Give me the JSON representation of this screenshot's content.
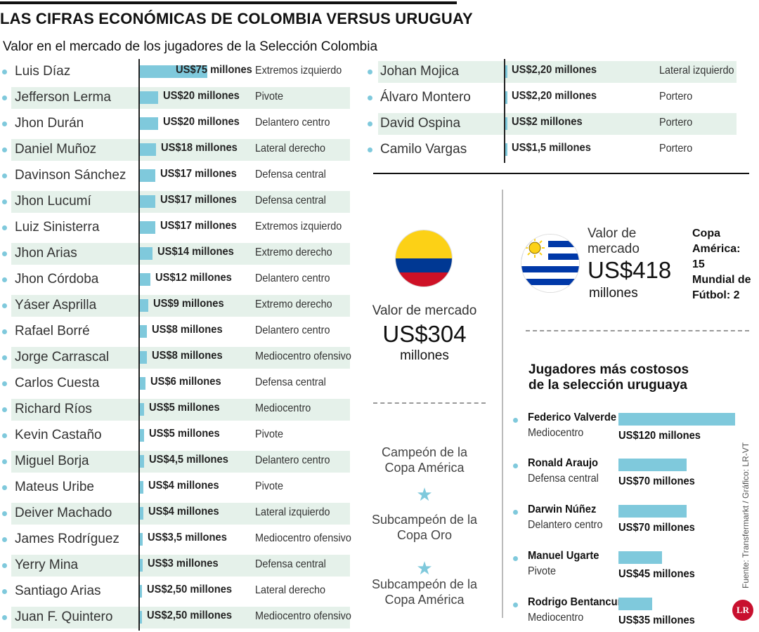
{
  "header": {
    "title": "LAS CIFRAS ECONÓMICAS DE COLOMBIA VERSUS URUGUAY",
    "subtitle": "Valor en el mercado de los jugadores de la Selección Colombia"
  },
  "colombia": {
    "market_value_label": "Valor de mercado",
    "market_value": "US$304",
    "market_value_unit": "millones",
    "achievements": [
      "Campeón de la Copa América",
      "Subcampeón de la Copa Oro",
      "Subcampeón de la Copa América"
    ],
    "flag": "colombia-flag",
    "colors": {
      "yellow": "#fcd116",
      "blue": "#003893",
      "red": "#ce1126"
    }
  },
  "uruguay": {
    "market_value_label": "Valor de mercado",
    "market_value": "US$418",
    "market_value_unit": "millones",
    "copa_america": "Copa América: 15",
    "mundial": "Mundial de Fútbol: 2",
    "players_heading": "Jugadores más costosos de la selección uruguaya",
    "flag": "uruguay-flag"
  },
  "source": "Fuente: Transfermarkt / Gráfico: LR-VT",
  "logo_text": "LR",
  "accent_color": "#7fc9dc",
  "chart_data": [
    {
      "type": "bar",
      "orientation": "horizontal",
      "unit": "US$ millones",
      "categories": [
        "Luis Díaz",
        "Jefferson Lerma",
        "Jhon Durán",
        "Daniel Muñoz",
        "Davinson Sánchez",
        "Jhon Lucumí",
        "Luiz Sinisterra",
        "Jhon Arias",
        "Jhon Córdoba",
        "Yáser Asprilla",
        "Rafael Borré",
        "Jorge Carrascal",
        "Carlos Cuesta",
        "Richard Ríos",
        "Kevin Castaño",
        "Miguel Borja",
        "Mateus Uribe",
        "Deiver Machado",
        "James Rodríguez",
        "Yerry Mina",
        "Santiago Arias",
        "Juan F. Quintero",
        "Johan Mojica",
        "Álvaro Montero",
        "David Ospina",
        "Camilo Vargas"
      ],
      "values": [
        75,
        20,
        20,
        18,
        17,
        17,
        17,
        14,
        12,
        9,
        8,
        8,
        6,
        5,
        5,
        4.5,
        4,
        4,
        3.5,
        3,
        2.5,
        2.5,
        2.2,
        2.2,
        2,
        1.5
      ],
      "value_labels": [
        "US$75 millones",
        "US$20 millones",
        "US$20 millones",
        "US$18 millones",
        "US$17 millones",
        "US$17 millones",
        "US$17 millones",
        "US$14 millones",
        "US$12 millones",
        "US$9 millones",
        "US$8 millones",
        "US$8 millones",
        "US$6 millones",
        "US$5 millones",
        "US$5 millones",
        "US$4,5 millones",
        "US$4 millones",
        "US$4 millones",
        "US$3,5 millones",
        "US$3 millones",
        "US$2,50 millones",
        "US$2,50 millones",
        "US$2,20 millones",
        "US$2,20 millones",
        "US$2 millones",
        "US$1,5 millones"
      ],
      "positions": [
        "Extremos izquierdo",
        "Pivote",
        "Delantero centro",
        "Lateral derecho",
        "Defensa central",
        "Defensa central",
        "Extremos izquierdo",
        "Extremo derecho",
        "Delantero centro",
        "Extremo derecho",
        "Delantero centro",
        "Mediocentro ofensivo",
        "Defensa central",
        "Mediocentro",
        "Pivote",
        "Delantero centro",
        "Pivote",
        "Lateral izquierdo",
        "Mediocentro ofensivo",
        "Defensa central",
        "Lateral derecho",
        "Mediocentro ofensivo",
        "Lateral izquierdo",
        "Portero",
        "Portero",
        "Portero"
      ]
    },
    {
      "type": "bar",
      "orientation": "horizontal",
      "unit": "US$ millones",
      "categories": [
        "Federico Valverde",
        "Ronald Araujo",
        "Darwin Núñez",
        "Manuel Ugarte",
        "Rodrigo Bentancur"
      ],
      "values": [
        120,
        70,
        70,
        45,
        35
      ],
      "value_labels": [
        "US$120 millones",
        "US$70 millones",
        "US$70 millones",
        "US$45 millones",
        "US$35 millones"
      ],
      "positions": [
        "Mediocentro",
        "Defensa central",
        "Delantero centro",
        "Pivote",
        "Mediocentro"
      ]
    }
  ]
}
